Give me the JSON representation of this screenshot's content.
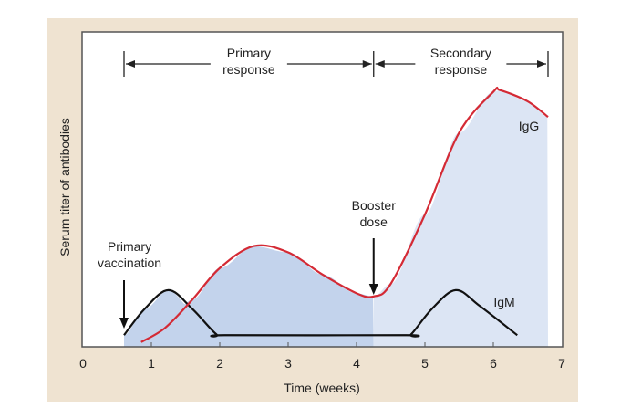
{
  "chart_data": {
    "type": "line",
    "title": "",
    "xlabel": "Time (weeks)",
    "ylabel": "Serum titer of antibodies",
    "xlim": [
      0,
      7
    ],
    "ylim": [
      0,
      100
    ],
    "x_ticks": [
      "0",
      "1",
      "2",
      "3",
      "4",
      "5",
      "6",
      "7"
    ],
    "grid": false,
    "series": [
      {
        "name": "IgG",
        "color": "#d42a35",
        "points": [
          [
            0.85,
            1.5
          ],
          [
            1.2,
            6
          ],
          [
            1.6,
            15
          ],
          [
            2.0,
            25
          ],
          [
            2.5,
            32
          ],
          [
            3.0,
            30
          ],
          [
            3.5,
            23
          ],
          [
            4.0,
            17
          ],
          [
            4.25,
            16
          ],
          [
            4.5,
            20
          ],
          [
            5.0,
            42
          ],
          [
            5.5,
            68
          ],
          [
            6.0,
            81
          ],
          [
            6.1,
            81.5
          ],
          [
            6.5,
            78
          ],
          [
            6.8,
            73
          ]
        ]
      },
      {
        "name": "IgM",
        "color": "#111111",
        "points": [
          [
            0.6,
            3.7
          ],
          [
            0.9,
            12
          ],
          [
            1.25,
            18
          ],
          [
            1.6,
            12
          ],
          [
            1.95,
            4
          ],
          [
            2.1,
            3.7
          ],
          [
            4.7,
            3.7
          ],
          [
            4.8,
            4
          ],
          [
            5.1,
            12
          ],
          [
            5.45,
            18
          ],
          [
            5.8,
            13
          ],
          [
            6.35,
            3.7
          ]
        ]
      }
    ],
    "shaded_regions": [
      {
        "from": 0.6,
        "to": 4.25,
        "color": "#c3d3ec"
      },
      {
        "from": 4.25,
        "to": 6.8,
        "color": "#dce5f4"
      }
    ],
    "phases": [
      {
        "label_line1": "Primary",
        "label_line2": "response",
        "from": 0.6,
        "to": 4.25
      },
      {
        "label_line1": "Secondary",
        "label_line2": "response",
        "from": 4.25,
        "to": 6.8
      }
    ],
    "annotations": [
      {
        "line1": "Primary",
        "line2": "vaccination",
        "x": 0.6
      },
      {
        "line1": "Booster",
        "line2": "dose",
        "x": 4.25
      }
    ],
    "background_color": "#efe3d1"
  }
}
